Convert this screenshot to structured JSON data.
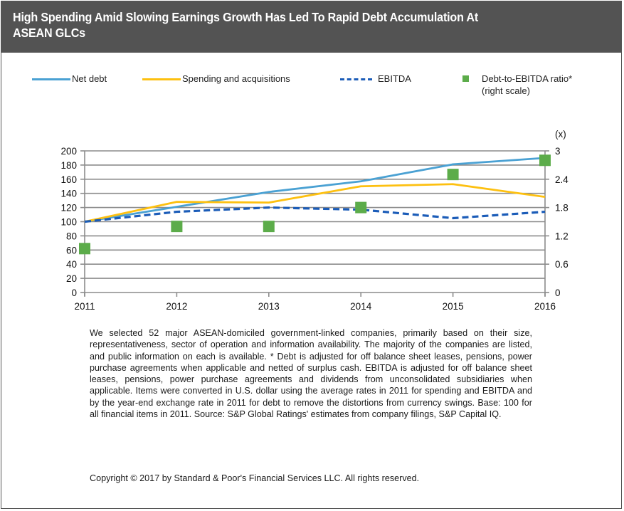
{
  "header": {
    "title": "High Spending Amid Slowing Earnings Growth Has Led To Rapid Debt Accumulation At ASEAN GLCs"
  },
  "legend": [
    {
      "label": "Net debt",
      "style": "solid",
      "color": "#4aa1d3"
    },
    {
      "label": "Spending and acquisitions",
      "style": "solid",
      "color": "#fdc010"
    },
    {
      "label": "EBITDA",
      "style": "dashed",
      "color": "#1b5cb8"
    },
    {
      "label": "Debt-to-EBITDA ratio*",
      "label2": "(right scale)",
      "style": "marker",
      "color": "#5cac4a"
    }
  ],
  "chart_data": {
    "type": "line",
    "title": "High Spending Amid Slowing Earnings Growth Has Led To Rapid Debt Accumulation At ASEAN GLCs",
    "x": [
      "2011",
      "2012",
      "2013",
      "2014",
      "2015",
      "2016"
    ],
    "xlabel": "",
    "ylabel": "",
    "ylim": [
      0,
      200
    ],
    "yticks": [
      0,
      20,
      40,
      60,
      80,
      100,
      120,
      140,
      160,
      180,
      200
    ],
    "y2label": "(x)",
    "y2lim": [
      0,
      3
    ],
    "y2ticks": [
      "0",
      "0.6",
      "1.2",
      "1.8",
      "2.4",
      "3"
    ],
    "grid": true,
    "legend_position": "top",
    "series": [
      {
        "name": "Net debt",
        "axis": "left",
        "type": "line",
        "color": "#4aa1d3",
        "values": [
          100,
          121,
          142,
          157,
          181,
          190
        ]
      },
      {
        "name": "Spending and acquisitions",
        "axis": "left",
        "type": "line",
        "color": "#fdc010",
        "values": [
          100,
          128,
          127,
          150,
          153,
          135
        ]
      },
      {
        "name": "EBITDA",
        "axis": "left",
        "type": "line-dashed",
        "color": "#1b5cb8",
        "values": [
          100,
          114,
          120,
          117,
          105,
          114
        ]
      },
      {
        "name": "Debt-to-EBITDA ratio* (right scale)",
        "axis": "right",
        "type": "scatter",
        "color": "#5cac4a",
        "values": [
          0.93,
          1.4,
          1.4,
          1.8,
          2.5,
          2.8
        ]
      }
    ]
  },
  "footnote": {
    "text": "We selected 52 major ASEAN-domiciled government-linked companies,  primarily based on their size, representativeness, sector of operation and  information availability. The majority of the companies are listed, and public information on each is available. * Debt is adjusted for off balance sheet  leases, pensions, power purchase agreements when applicable and netted of surplus cash. EBITDA is adjusted for off balance sheet leases, pensions,  power purchase agreements and dividends from unconsolidated subsidiaries when applicable. Items were converted in U.S. dollar using the average rates  in 2011 for spending and EBITDA and by the year-end exchange rate in 2011  for debt to remove the distortions from currency swings. Base: 100 for all  financial items in 2011. Source: S&P Global Ratings' estimates from company  filings, S&P Capital IQ.",
    "copyright": "Copyright © 2017 by Standard & Poor's Financial Services LLC. All rights reserved."
  }
}
